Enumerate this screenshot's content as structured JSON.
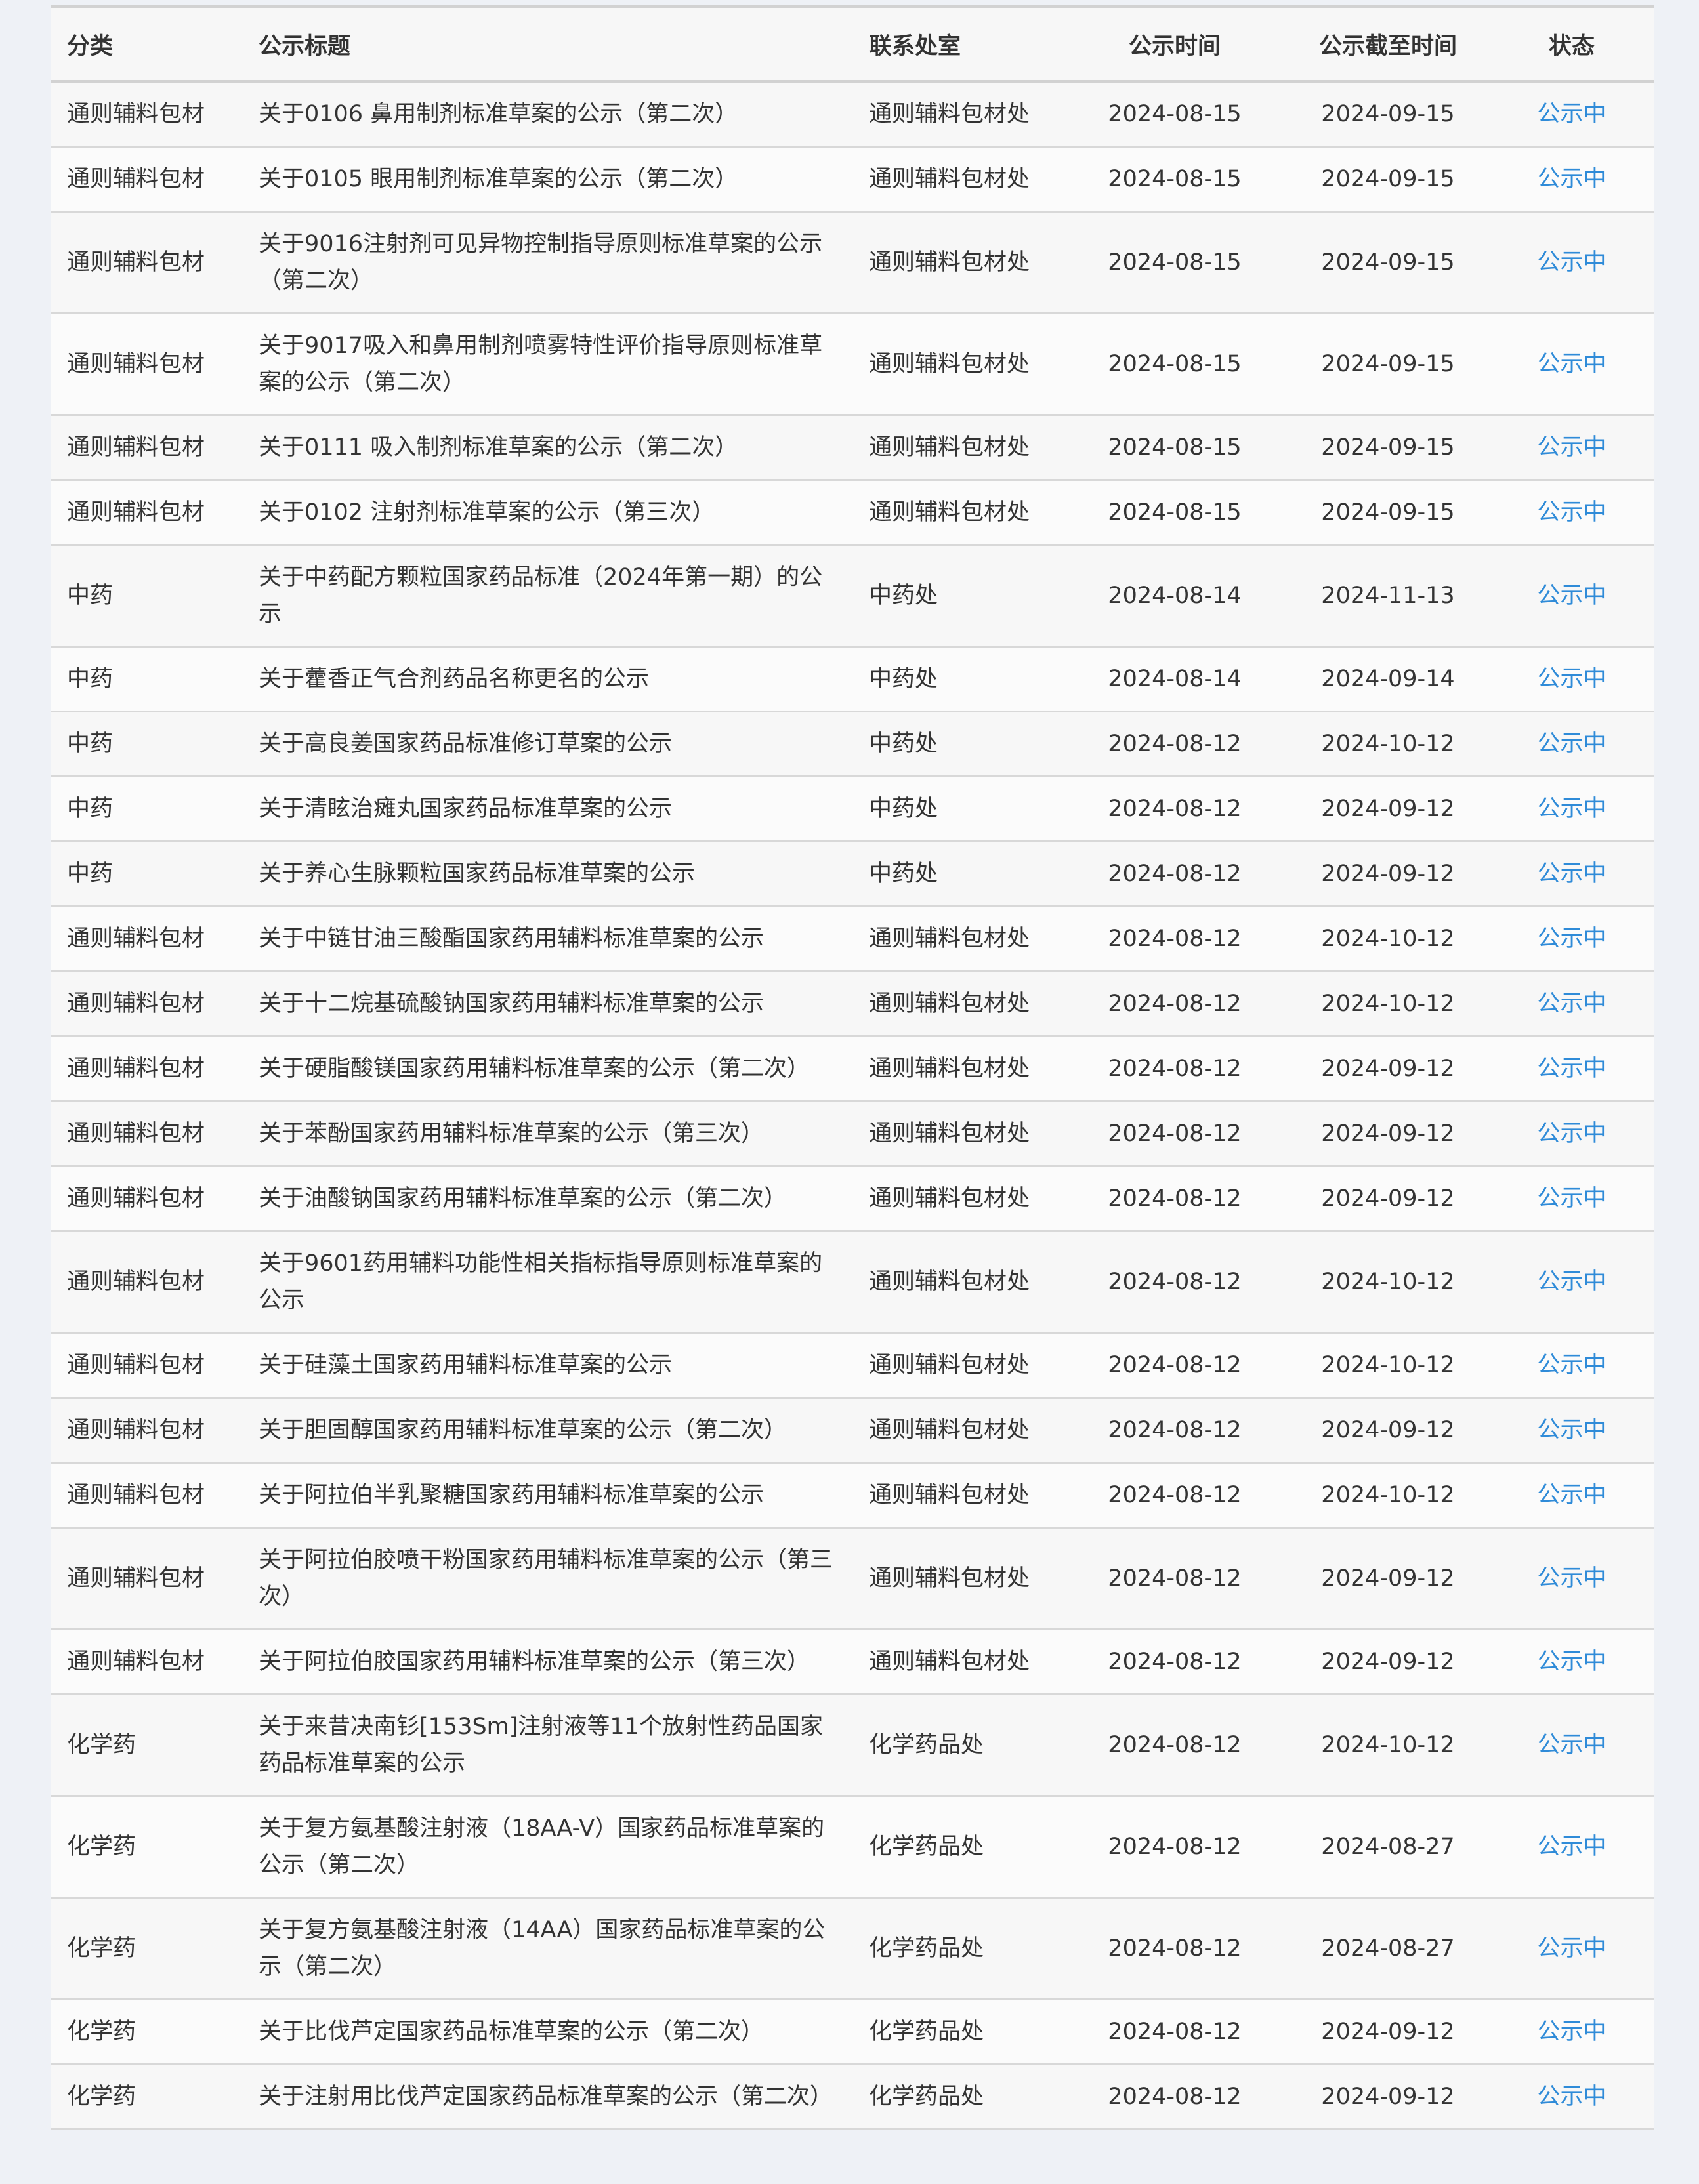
{
  "table": {
    "headers": [
      "分类",
      "公示标题",
      "联系处室",
      "公示时间",
      "公示截至时间",
      "状态"
    ],
    "status_color": "#2f8bd8",
    "rows": [
      {
        "category": "通则辅料包材",
        "title": "关于0106 鼻用制剂标准草案的公示（第二次）",
        "office": "通则辅料包材处",
        "start": "2024-08-15",
        "end": "2024-09-15",
        "status": "公示中"
      },
      {
        "category": "通则辅料包材",
        "title": "关于0105 眼用制剂标准草案的公示（第二次）",
        "office": "通则辅料包材处",
        "start": "2024-08-15",
        "end": "2024-09-15",
        "status": "公示中"
      },
      {
        "category": "通则辅料包材",
        "title": "关于9016注射剂可见异物控制指导原则标准草案的公示（第二次）",
        "office": "通则辅料包材处",
        "start": "2024-08-15",
        "end": "2024-09-15",
        "status": "公示中"
      },
      {
        "category": "通则辅料包材",
        "title": "关于9017吸入和鼻用制剂喷雾特性评价指导原则标准草案的公示（第二次）",
        "office": "通则辅料包材处",
        "start": "2024-08-15",
        "end": "2024-09-15",
        "status": "公示中"
      },
      {
        "category": "通则辅料包材",
        "title": "关于0111 吸入制剂标准草案的公示（第二次）",
        "office": "通则辅料包材处",
        "start": "2024-08-15",
        "end": "2024-09-15",
        "status": "公示中"
      },
      {
        "category": "通则辅料包材",
        "title": "关于0102 注射剂标准草案的公示（第三次）",
        "office": "通则辅料包材处",
        "start": "2024-08-15",
        "end": "2024-09-15",
        "status": "公示中"
      },
      {
        "category": "中药",
        "title": "关于中药配方颗粒国家药品标准（2024年第一期）的公示",
        "office": "中药处",
        "start": "2024-08-14",
        "end": "2024-11-13",
        "status": "公示中"
      },
      {
        "category": "中药",
        "title": "关于藿香正气合剂药品名称更名的公示",
        "office": "中药处",
        "start": "2024-08-14",
        "end": "2024-09-14",
        "status": "公示中"
      },
      {
        "category": "中药",
        "title": "关于高良姜国家药品标准修订草案的公示",
        "office": "中药处",
        "start": "2024-08-12",
        "end": "2024-10-12",
        "status": "公示中"
      },
      {
        "category": "中药",
        "title": "关于清眩治瘫丸国家药品标准草案的公示",
        "office": "中药处",
        "start": "2024-08-12",
        "end": "2024-09-12",
        "status": "公示中"
      },
      {
        "category": "中药",
        "title": "关于养心生脉颗粒国家药品标准草案的公示",
        "office": "中药处",
        "start": "2024-08-12",
        "end": "2024-09-12",
        "status": "公示中"
      },
      {
        "category": "通则辅料包材",
        "title": "关于中链甘油三酸酯国家药用辅料标准草案的公示",
        "office": "通则辅料包材处",
        "start": "2024-08-12",
        "end": "2024-10-12",
        "status": "公示中"
      },
      {
        "category": "通则辅料包材",
        "title": "关于十二烷基硫酸钠国家药用辅料标准草案的公示",
        "office": "通则辅料包材处",
        "start": "2024-08-12",
        "end": "2024-10-12",
        "status": "公示中"
      },
      {
        "category": "通则辅料包材",
        "title": "关于硬脂酸镁国家药用辅料标准草案的公示（第二次）",
        "office": "通则辅料包材处",
        "start": "2024-08-12",
        "end": "2024-09-12",
        "status": "公示中"
      },
      {
        "category": "通则辅料包材",
        "title": "关于苯酚国家药用辅料标准草案的公示（第三次）",
        "office": "通则辅料包材处",
        "start": "2024-08-12",
        "end": "2024-09-12",
        "status": "公示中"
      },
      {
        "category": "通则辅料包材",
        "title": "关于油酸钠国家药用辅料标准草案的公示（第二次）",
        "office": "通则辅料包材处",
        "start": "2024-08-12",
        "end": "2024-09-12",
        "status": "公示中"
      },
      {
        "category": "通则辅料包材",
        "title": "关于9601药用辅料功能性相关指标指导原则标准草案的公示",
        "office": "通则辅料包材处",
        "start": "2024-08-12",
        "end": "2024-10-12",
        "status": "公示中"
      },
      {
        "category": "通则辅料包材",
        "title": "关于硅藻土国家药用辅料标准草案的公示",
        "office": "通则辅料包材处",
        "start": "2024-08-12",
        "end": "2024-10-12",
        "status": "公示中"
      },
      {
        "category": "通则辅料包材",
        "title": "关于胆固醇国家药用辅料标准草案的公示（第二次）",
        "office": "通则辅料包材处",
        "start": "2024-08-12",
        "end": "2024-09-12",
        "status": "公示中"
      },
      {
        "category": "通则辅料包材",
        "title": "关于阿拉伯半乳聚糖国家药用辅料标准草案的公示",
        "office": "通则辅料包材处",
        "start": "2024-08-12",
        "end": "2024-10-12",
        "status": "公示中"
      },
      {
        "category": "通则辅料包材",
        "title": "关于阿拉伯胶喷干粉国家药用辅料标准草案的公示（第三次）",
        "office": "通则辅料包材处",
        "start": "2024-08-12",
        "end": "2024-09-12",
        "status": "公示中"
      },
      {
        "category": "通则辅料包材",
        "title": "关于阿拉伯胶国家药用辅料标准草案的公示（第三次）",
        "office": "通则辅料包材处",
        "start": "2024-08-12",
        "end": "2024-09-12",
        "status": "公示中"
      },
      {
        "category": "化学药",
        "title": "关于来昔决南钐[153Sm]注射液等11个放射性药品国家药品标准草案的公示",
        "office": "化学药品处",
        "start": "2024-08-12",
        "end": "2024-10-12",
        "status": "公示中"
      },
      {
        "category": "化学药",
        "title": "关于复方氨基酸注射液（18AA-V）国家药品标准草案的公示（第二次）",
        "office": "化学药品处",
        "start": "2024-08-12",
        "end": "2024-08-27",
        "status": "公示中"
      },
      {
        "category": "化学药",
        "title": "关于复方氨基酸注射液（14AA）国家药品标准草案的公示（第二次）",
        "office": "化学药品处",
        "start": "2024-08-12",
        "end": "2024-08-27",
        "status": "公示中"
      },
      {
        "category": "化学药",
        "title": "关于比伐芦定国家药品标准草案的公示（第二次）",
        "office": "化学药品处",
        "start": "2024-08-12",
        "end": "2024-09-12",
        "status": "公示中"
      },
      {
        "category": "化学药",
        "title": "关于注射用比伐芦定国家药品标准草案的公示（第二次）",
        "office": "化学药品处",
        "start": "2024-08-12",
        "end": "2024-09-12",
        "status": "公示中"
      }
    ]
  }
}
